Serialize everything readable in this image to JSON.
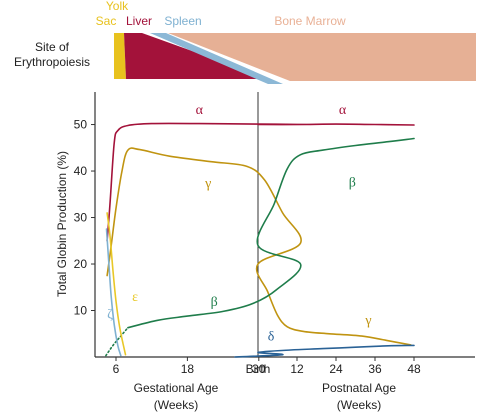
{
  "chart_data": {
    "type": "line",
    "sites": {
      "title_line1": "Site of",
      "title_line2": "Erythropoiesis",
      "labels": [
        {
          "key": "yolk1",
          "text": "Yolk",
          "color": "#e8c21e"
        },
        {
          "key": "yolk2",
          "text": "Sac",
          "color": "#e8c21e"
        },
        {
          "key": "liver",
          "text": "Liver",
          "color": "#a3123a"
        },
        {
          "key": "spleen",
          "text": "Spleen",
          "color": "#7fb1d1"
        },
        {
          "key": "marrow",
          "text": "Bone Marrow",
          "color": "#e9b196"
        }
      ],
      "colors": {
        "yolk_sac": "#e8c21e",
        "liver": "#a3123a",
        "spleen": "#8cb8d6",
        "bone_marrow": "#e6b095"
      }
    },
    "ylabel": "Total Globin Production (%)",
    "yticks": [
      "10",
      "20",
      "30",
      "40",
      "50"
    ],
    "ytick_values": [
      10,
      20,
      30,
      40,
      50
    ],
    "ylim": [
      0,
      57
    ],
    "xticks_gestational": [
      "6",
      "18",
      "30"
    ],
    "xtick_gest_values": [
      6,
      18,
      30
    ],
    "birth_label": "Birth",
    "xticks_postnatal": [
      "12",
      "24",
      "36",
      "48"
    ],
    "xtick_post_values": [
      12,
      24,
      36,
      48
    ],
    "xlabel_gestational_line1": "Gestational Age",
    "xlabel_gestational_line2": "(Weeks)",
    "xlabel_postnatal_line1": "Postnatal Age",
    "xlabel_postnatal_line2": "(Weeks)",
    "series": [
      {
        "key": "alpha",
        "name": "α",
        "color": "#a3123a",
        "points": [
          [
            "g",
            4.5,
            25
          ],
          [
            "g",
            5,
            33
          ],
          [
            "g",
            5.7,
            46
          ],
          [
            "g",
            6.3,
            48.7
          ],
          [
            "g",
            8,
            49.8
          ],
          [
            "g",
            12,
            50.2
          ],
          [
            "g",
            20,
            50.2
          ],
          [
            "g",
            30,
            50.1
          ],
          [
            "g",
            38,
            50
          ],
          [
            "b",
            0,
            50
          ],
          [
            "p",
            12,
            50
          ],
          [
            "p",
            24,
            50.1
          ],
          [
            "p",
            36,
            50
          ],
          [
            "p",
            48,
            49.9
          ]
        ],
        "labels": [
          [
            "g",
            20,
            52.3
          ],
          [
            "p",
            26,
            52.3
          ]
        ]
      },
      {
        "key": "gamma",
        "name": "γ",
        "color": "#c09411",
        "points": [
          [
            "g",
            4.5,
            17.5
          ],
          [
            "g",
            5.2,
            24
          ],
          [
            "g",
            6,
            32
          ],
          [
            "g",
            7,
            40
          ],
          [
            "g",
            8,
            44.5
          ],
          [
            "g",
            10,
            44.6
          ],
          [
            "g",
            15,
            43.2
          ],
          [
            "g",
            22,
            42
          ],
          [
            "g",
            28,
            41
          ],
          [
            "g",
            31,
            38
          ],
          [
            "g",
            34,
            31
          ],
          [
            "g",
            37,
            24.5
          ],
          [
            "b",
            0,
            20
          ],
          [
            "p",
            3,
            14
          ],
          [
            "p",
            6,
            9
          ],
          [
            "p",
            9,
            6.5
          ],
          [
            "p",
            14,
            5.5
          ],
          [
            "p",
            22,
            5
          ],
          [
            "p",
            32,
            4.5
          ],
          [
            "p",
            40,
            3.5
          ],
          [
            "p",
            47,
            2.6
          ]
        ],
        "labels": [
          [
            "g",
            21.5,
            36.5
          ],
          [
            "p",
            34,
            7
          ]
        ]
      },
      {
        "key": "beta",
        "name": "β",
        "color": "#1f7d4b",
        "points": [
          [
            "g",
            8,
            6.3
          ],
          [
            "g",
            13,
            7.9
          ],
          [
            "g",
            18,
            8.8
          ],
          [
            "g",
            24,
            9.8
          ],
          [
            "g",
            29,
            11.5
          ],
          [
            "g",
            33,
            14.5
          ],
          [
            "g",
            37,
            20
          ],
          [
            "b",
            0,
            24
          ],
          [
            "p",
            5,
            33
          ],
          [
            "p",
            9,
            40.5
          ],
          [
            "p",
            13,
            43.5
          ],
          [
            "p",
            20,
            44.5
          ],
          [
            "p",
            30,
            45.5
          ],
          [
            "p",
            40,
            46.3
          ],
          [
            "p",
            48,
            47
          ]
        ],
        "dotted": [
          [
            "g",
            4.3,
            0.3
          ],
          [
            "g",
            5.5,
            2.5
          ],
          [
            "g",
            6.8,
            4.5
          ],
          [
            "g",
            8,
            6.3
          ]
        ],
        "labels": [
          [
            "g",
            22.5,
            11
          ],
          [
            "p",
            29,
            36.7
          ]
        ]
      },
      {
        "key": "epsilon",
        "name": "ε",
        "color": "#e8c828",
        "points": [
          [
            "g",
            4.5,
            31
          ],
          [
            "g",
            5,
            26
          ],
          [
            "g",
            5.5,
            18.5
          ],
          [
            "g",
            6,
            12
          ],
          [
            "g",
            6.6,
            6.5
          ],
          [
            "g",
            7.2,
            2.8
          ],
          [
            "g",
            7.6,
            0.5
          ]
        ],
        "labels": [
          [
            "g",
            9.2,
            12
          ]
        ]
      },
      {
        "key": "zeta",
        "name": "ζ",
        "color": "#7fb1d1",
        "points": [
          [
            "g",
            4.4,
            27.5
          ],
          [
            "g",
            4.8,
            20
          ],
          [
            "g",
            5.2,
            13
          ],
          [
            "g",
            5.7,
            7
          ],
          [
            "g",
            6.3,
            2.5
          ],
          [
            "g",
            6.8,
            0.3
          ]
        ],
        "labels": [
          [
            "g",
            5,
            8.3
          ]
        ]
      },
      {
        "key": "delta",
        "name": "δ",
        "color": "#2a6296",
        "points": [
          [
            "g",
            26,
            0
          ],
          [
            "g",
            34,
            0.5
          ],
          [
            "b",
            0,
            1
          ],
          [
            "p",
            10,
            1.5
          ],
          [
            "p",
            20,
            1.8
          ],
          [
            "p",
            30,
            2.1
          ],
          [
            "p",
            40,
            2.4
          ],
          [
            "p",
            48,
            2.5
          ]
        ],
        "labels": [
          [
            "p",
            4,
            3.5
          ]
        ]
      }
    ]
  }
}
